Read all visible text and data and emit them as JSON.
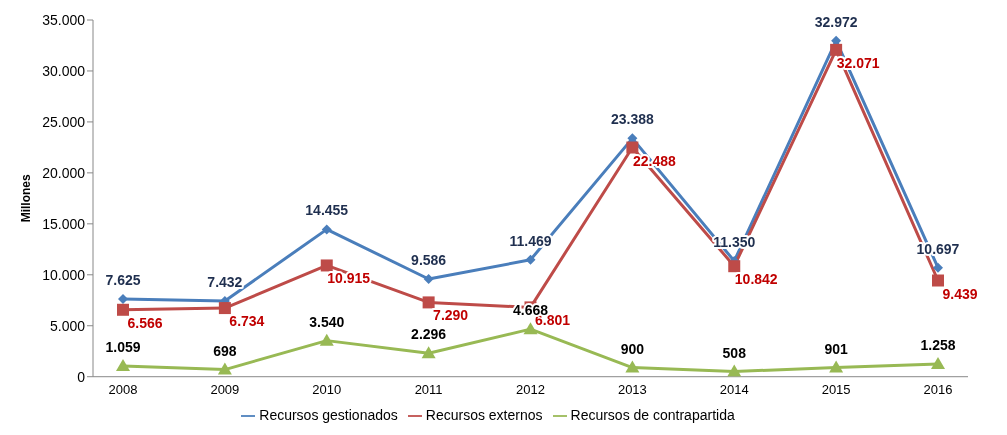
{
  "chart_data": {
    "type": "line",
    "ylabel": "Millones",
    "categories": [
      "2008",
      "2009",
      "2010",
      "2011",
      "2012",
      "2013",
      "2014",
      "2015",
      "2016"
    ],
    "ylim": [
      0,
      35000
    ],
    "yticks": [
      {
        "value": 0,
        "label": "0"
      },
      {
        "value": 5000,
        "label": "5.000"
      },
      {
        "value": 10000,
        "label": "10.000"
      },
      {
        "value": 15000,
        "label": "15.000"
      },
      {
        "value": 20000,
        "label": "20.000"
      },
      {
        "value": 25000,
        "label": "25.000"
      },
      {
        "value": 30000,
        "label": "30.000"
      },
      {
        "value": 35000,
        "label": "35.000"
      }
    ],
    "legend": "bottom",
    "series": [
      {
        "name": "Recursos gestionados",
        "color": "#4a7ebb",
        "marker": "diamond",
        "values": [
          7625,
          7432,
          14455,
          9586,
          11469,
          23388,
          11350,
          32972,
          10697
        ],
        "value_labels": [
          "7.625",
          "7.432",
          "14.455",
          "9.586",
          "11.469",
          "23.388",
          "11.350",
          "32.972",
          "10.697"
        ]
      },
      {
        "name": "Recursos externos",
        "color": "#be4b48",
        "marker": "square",
        "values": [
          6566,
          6734,
          10915,
          7290,
          6801,
          22488,
          10842,
          32071,
          9439
        ],
        "value_labels": [
          "6.566",
          "6.734",
          "10.915",
          "7.290",
          "6.801",
          "22.488",
          "10.842",
          "32.071",
          "9.439"
        ]
      },
      {
        "name": "Recursos de contrapartida",
        "color": "#98b954",
        "marker": "triangle",
        "values": [
          1059,
          698,
          3540,
          2296,
          4668,
          900,
          508,
          901,
          1258
        ],
        "value_labels": [
          "1.059",
          "698",
          "3.540",
          "2.296",
          "4.668",
          "900",
          "508",
          "901",
          "1.258"
        ]
      }
    ]
  }
}
